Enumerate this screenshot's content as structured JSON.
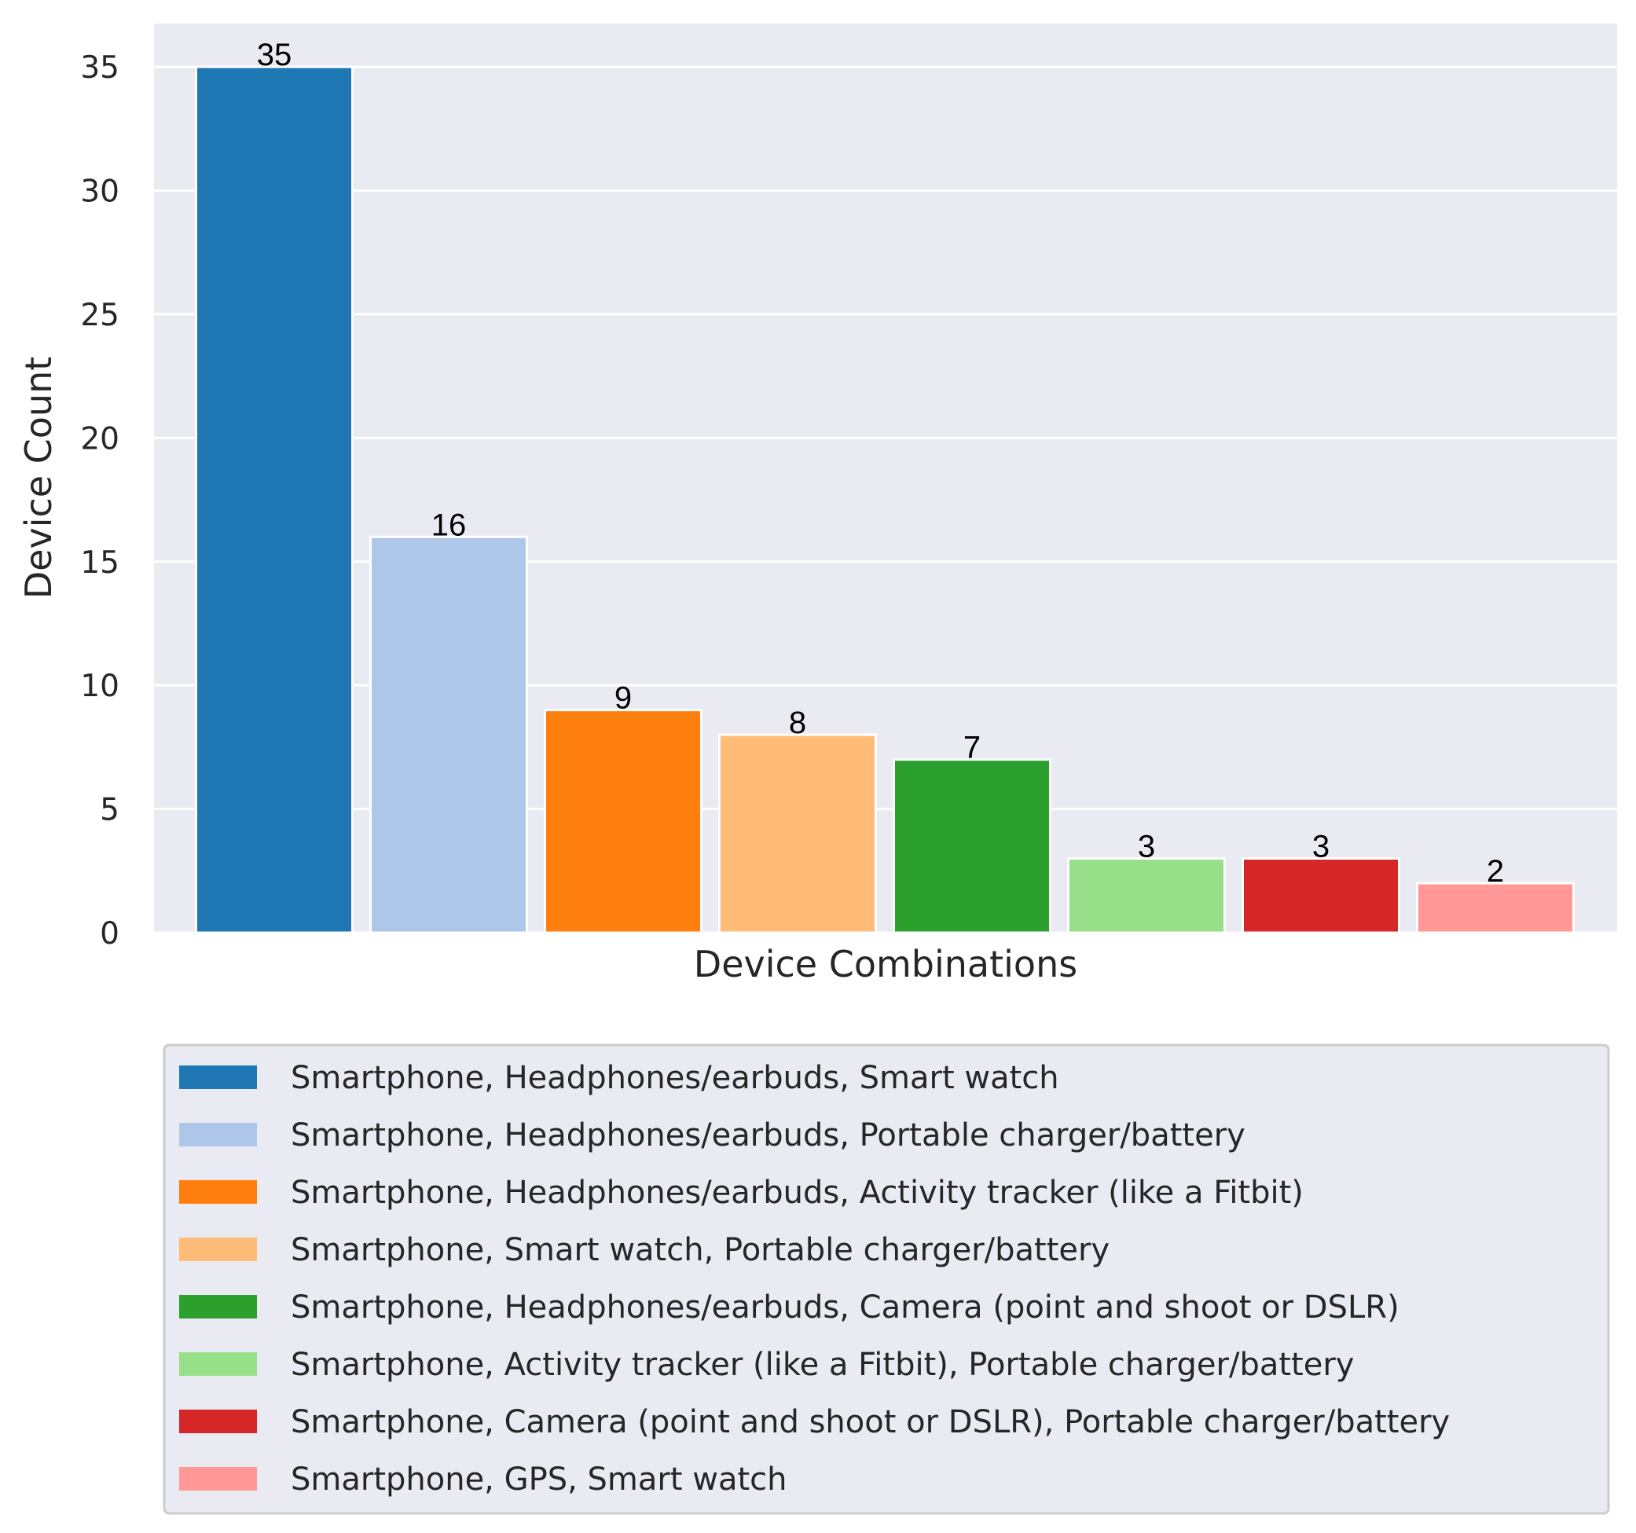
{
  "chart_data": {
    "type": "bar",
    "title": "",
    "xlabel": "Device Combinations",
    "ylabel": "Device Count",
    "ylim": [
      0,
      36.75
    ],
    "yticks": [
      0,
      5,
      10,
      15,
      20,
      25,
      30,
      35
    ],
    "grid": true,
    "legend_position": "bottom",
    "categories": [
      "Smartphone, Headphones/earbuds, Smart watch",
      "Smartphone, Headphones/earbuds, Portable charger/battery",
      "Smartphone, Headphones/earbuds, Activity tracker (like a Fitbit)",
      "Smartphone, Smart watch, Portable charger/battery",
      "Smartphone, Headphones/earbuds, Camera (point and shoot or DSLR)",
      "Smartphone, Activity tracker (like a Fitbit), Portable charger/battery",
      "Smartphone, Camera (point and shoot or DSLR), Portable charger/battery",
      "Smartphone, GPS, Smart watch"
    ],
    "values": [
      35,
      16,
      9,
      8,
      7,
      3,
      3,
      2
    ],
    "colors": [
      "#1f77b4",
      "#aec7e8",
      "#ff7f0e",
      "#ffbb78",
      "#2ca02c",
      "#98df8a",
      "#d62728",
      "#ff9896"
    ]
  }
}
